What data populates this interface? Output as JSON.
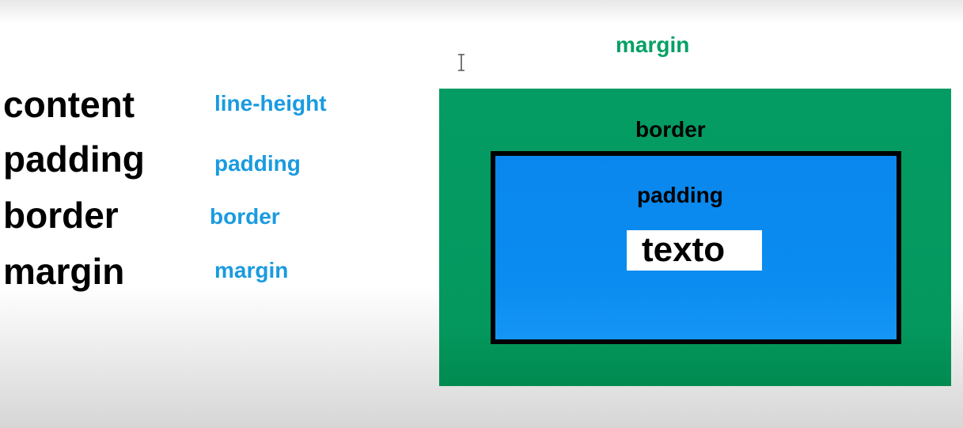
{
  "left_terms": [
    "content",
    "padding",
    "border",
    "margin"
  ],
  "css_properties": [
    "line-height",
    "padding",
    "border",
    "margin"
  ],
  "diagram": {
    "margin_label": "margin",
    "border_label": "border",
    "padding_label": "padding",
    "content_text": "texto"
  },
  "colors": {
    "term_text": "#000000",
    "property_text": "#1a9be0",
    "margin_label": "#05a064",
    "margin_area": "#049c63",
    "border": "#000000",
    "padding_area": "#0a8cf0",
    "content_background": "#ffffff"
  },
  "icons": {
    "cursor": "text-cursor-icon"
  }
}
